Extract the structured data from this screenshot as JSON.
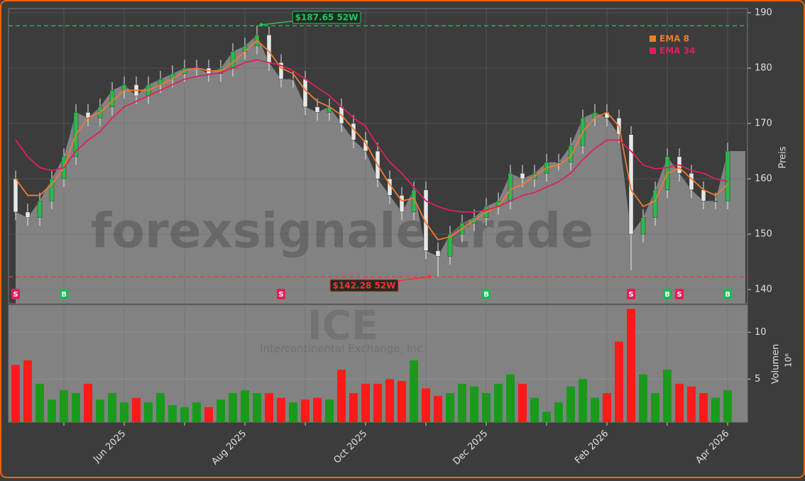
{
  "chart_data": {
    "type": "candlestick",
    "categories": [
      null,
      null,
      null,
      null,
      null,
      null,
      null,
      null,
      null,
      "Jun 2025",
      null,
      null,
      null,
      null,
      null,
      null,
      null,
      null,
      null,
      "Aug 2025",
      null,
      null,
      null,
      null,
      null,
      null,
      null,
      null,
      null,
      "Oct 2025",
      null,
      null,
      null,
      null,
      null,
      null,
      null,
      null,
      null,
      "Dec 2025",
      null,
      null,
      null,
      null,
      null,
      null,
      null,
      null,
      null,
      "Feb 2026",
      null,
      null,
      null,
      null,
      null,
      null,
      null,
      null,
      null,
      "Apr 2026"
    ],
    "open": [
      160,
      154,
      153,
      156,
      160,
      164,
      172,
      171,
      173,
      176,
      177,
      175,
      177,
      178,
      179,
      180,
      180,
      179,
      180,
      183,
      184,
      186,
      181,
      178,
      178,
      173,
      172,
      173,
      170,
      167,
      165,
      160,
      157,
      154,
      158,
      147,
      146,
      150,
      152,
      153,
      155,
      156,
      161,
      160,
      161,
      163,
      163,
      166,
      171,
      172,
      171,
      168,
      150,
      153,
      158,
      164,
      161,
      158,
      156,
      156
    ],
    "high": [
      161.5,
      155.5,
      157.5,
      161.5,
      165.5,
      173.5,
      173.5,
      174.5,
      177.5,
      178.5,
      178.5,
      178.5,
      179.5,
      180.5,
      181.5,
      181.5,
      181.5,
      181.5,
      184.5,
      185.5,
      187.65,
      187.5,
      182.5,
      179.5,
      179.5,
      174.5,
      174.5,
      174.5,
      171.5,
      168.5,
      166.5,
      161.5,
      158.5,
      159.5,
      159.5,
      148.5,
      151.5,
      153.5,
      154.5,
      156.5,
      157.5,
      162.5,
      162.5,
      162.5,
      164.5,
      164.5,
      167.5,
      172.5,
      173.5,
      173.5,
      172.5,
      169.5,
      154.5,
      159.5,
      165.5,
      165.5,
      162.5,
      159.5,
      157.5,
      166.5
    ],
    "low": [
      152.5,
      151.5,
      151.5,
      154.5,
      158.5,
      162.5,
      169.5,
      169.5,
      171.5,
      174.5,
      173.5,
      173.5,
      175.5,
      176.5,
      177.5,
      178.5,
      177.5,
      177.5,
      178.5,
      181.5,
      182.5,
      179.5,
      176.5,
      176.5,
      171.5,
      170.5,
      170.5,
      168.5,
      165.5,
      163.5,
      158.5,
      155.5,
      152.5,
      152.5,
      145.5,
      142.28,
      144.5,
      148.5,
      150.5,
      151.5,
      153.5,
      154.5,
      158.5,
      158.5,
      159.5,
      161.5,
      161.5,
      164.5,
      169.5,
      169.5,
      166.5,
      143.5,
      148.5,
      151.5,
      156.5,
      159.5,
      156.5,
      154.5,
      154.5,
      154.5
    ],
    "close": [
      154,
      153,
      156,
      160,
      164,
      172,
      171,
      173,
      176,
      177,
      175,
      177,
      178,
      179,
      180,
      180,
      179,
      180,
      183,
      184,
      186,
      181,
      178,
      178,
      173,
      172,
      173,
      170,
      167,
      165,
      160,
      157,
      154,
      158,
      147,
      146,
      150,
      152,
      153,
      155,
      156,
      161,
      160,
      161,
      163,
      163,
      166,
      171,
      172,
      171,
      168,
      150,
      153,
      158,
      164,
      161,
      158,
      156,
      156,
      165
    ],
    "up_color": "#2db84d",
    "down_color": "#e8e8e8",
    "area_color": "#828282",
    "series": [
      {
        "name": "EMA 8",
        "color": "#f07a30",
        "values": [
          160,
          157,
          157,
          159,
          162,
          168,
          171,
          172,
          174,
          176,
          176,
          176,
          177,
          178,
          179.5,
          180,
          179.5,
          179.5,
          181,
          183,
          185,
          183,
          180,
          179,
          176,
          174,
          173,
          171.5,
          169,
          166.5,
          162.5,
          159,
          156,
          156.5,
          152,
          149,
          149.5,
          151,
          152.5,
          154,
          155,
          158,
          159,
          160.5,
          162,
          162.5,
          164,
          168.5,
          171,
          172,
          169.5,
          158,
          155,
          156,
          161,
          162,
          160,
          158,
          157,
          159
        ]
      },
      {
        "name": "EMA 34",
        "color": "#e0205a",
        "values": [
          167,
          164,
          162,
          161.5,
          162,
          165,
          167,
          168.5,
          171,
          173,
          174,
          175,
          176,
          177,
          178,
          178.5,
          178.8,
          179.2,
          180,
          181,
          181.5,
          181,
          180.5,
          179.5,
          178,
          176.5,
          175,
          173,
          171,
          169.5,
          166,
          163,
          161,
          158.5,
          156,
          155,
          154.3,
          154,
          154,
          154.3,
          155,
          156,
          157,
          157.5,
          158.5,
          159.5,
          161,
          163.5,
          165.5,
          167,
          167,
          165,
          162.5,
          161.8,
          162,
          162.5,
          161.5,
          161,
          160,
          159.5
        ]
      }
    ],
    "ylim": [
      137.44,
      190.77
    ],
    "yticks": [
      140,
      150,
      160,
      170,
      180,
      190
    ],
    "y_axis_label": "Preis",
    "grid": true,
    "high_52w": {
      "value": 187.65,
      "label": "$187.65 52W",
      "color": "#22c55e"
    },
    "low_52w": {
      "value": 142.28,
      "label": "$142.28 52W",
      "color": "#ff3030"
    },
    "signals": [
      {
        "label": "S",
        "at": 0
      },
      {
        "label": "B",
        "at": 4
      },
      {
        "label": "S",
        "at": 22
      },
      {
        "label": "B",
        "at": 39
      },
      {
        "label": "S",
        "at": 51
      },
      {
        "label": "B",
        "at": 54
      },
      {
        "label": "S",
        "at": 55
      },
      {
        "label": "B",
        "at": 59
      }
    ],
    "volume": {
      "values": [
        6.5,
        7,
        4.5,
        2.8,
        3.8,
        3.5,
        4.5,
        2.8,
        3.5,
        2.5,
        3,
        2.5,
        3.5,
        2.2,
        2,
        2.5,
        2,
        2.8,
        3.5,
        3.8,
        3.5,
        3.5,
        3,
        2.5,
        2.8,
        3,
        2.8,
        6,
        3.5,
        4.5,
        4.5,
        5,
        4.8,
        7,
        4,
        3.2,
        3.5,
        4.5,
        4.2,
        3.5,
        4.5,
        5.5,
        4.5,
        3,
        1.5,
        2.5,
        4.2,
        5,
        3,
        3.5,
        9,
        12.5,
        5.5,
        3.5,
        6,
        4.5,
        4.2,
        3.5,
        3,
        3.8
      ],
      "up_color": "#1a9a1a",
      "down_color": "#ff1a1a",
      "ylim": [
        0.4,
        12.9
      ],
      "yticks": [
        5,
        10
      ],
      "axis_label": "Volumen",
      "scale_label": "10⁶"
    },
    "watermark": "forexsignale.trade",
    "ticker": "ICE",
    "company": "Intercontinental Exchange, Inc."
  }
}
